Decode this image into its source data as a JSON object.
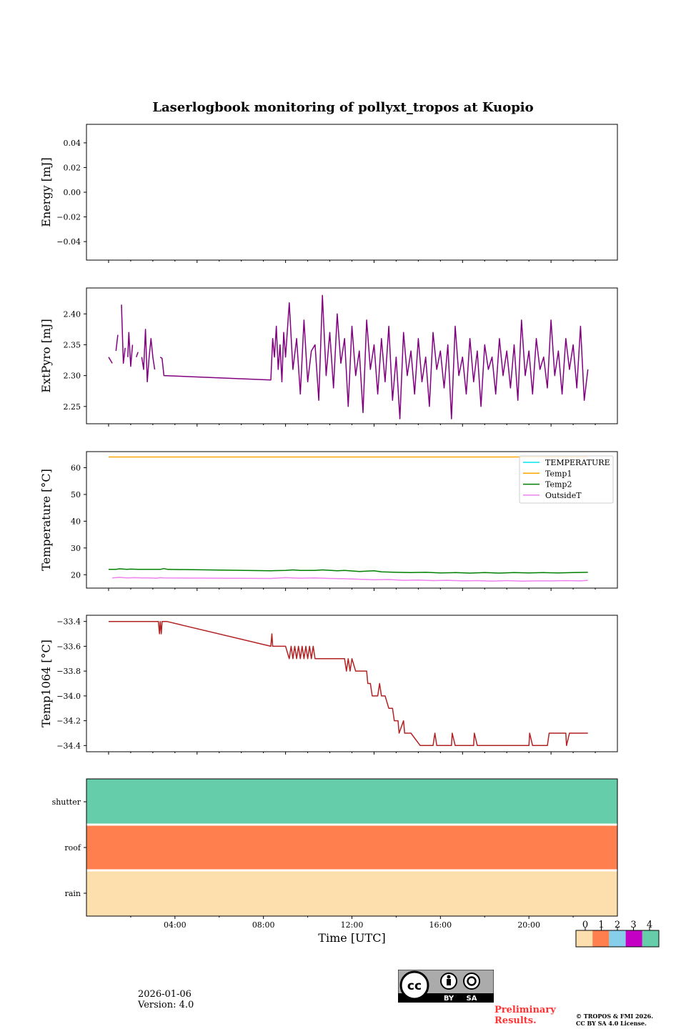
{
  "figure": {
    "title": "Laserlogbook monitoring of pollyxt_tropos at Kuopio",
    "date": "2026-01-06",
    "version": "Version: 4.0",
    "preliminary": [
      "Preliminary",
      "Results."
    ],
    "copyright": [
      "© TROPOS & FMI 2026.",
      "CC BY SA 4.0 License."
    ],
    "license_badge": {
      "left": "BY",
      "right": "SA"
    },
    "colors": {
      "energy": "#800080",
      "extpyro": "#800080",
      "temperature": "#00e5ee",
      "temp1": "#ffa500",
      "temp2": "#008000",
      "outsideT": "#ee82ee",
      "temp1064": "#b22222",
      "prelim": "#ff3333"
    }
  },
  "chart_data": [
    {
      "id": "energy",
      "type": "line",
      "ylabel": "Energy [mJ]",
      "ylim": [
        -0.055,
        0.055
      ],
      "yticks": [
        0.04,
        0.02,
        0.0,
        -0.02,
        -0.04
      ],
      "ytick_labels": [
        "0.04",
        "0.02",
        "0.00",
        "−0.02",
        "−0.04"
      ],
      "xlim": [
        0,
        1440
      ],
      "xticks": [
        60,
        300,
        540,
        780,
        1020,
        1260
      ],
      "series": []
    },
    {
      "id": "extpyro",
      "type": "line",
      "ylabel": "ExtPyro [mJ]",
      "ylim": [
        2.222,
        2.442
      ],
      "yticks": [
        2.4,
        2.35,
        2.3,
        2.25
      ],
      "ytick_labels": [
        "2.40",
        "2.35",
        "2.30",
        "2.25"
      ],
      "xlim": [
        0,
        1440
      ],
      "xticks": [
        60,
        300,
        540,
        780,
        1020,
        1260
      ],
      "series": [
        {
          "name": "ExtPyro",
          "color": "#800080",
          "x": [
            60,
            65,
            70,
            73,
            75,
            80,
            85,
            90,
            95,
            100,
            105,
            108,
            112,
            115,
            120,
            125,
            130,
            135,
            140,
            145,
            150,
            155,
            160,
            165,
            170,
            175,
            180,
            185,
            190,
            195,
            200,
            205,
            210,
            500,
            505,
            510,
            515,
            520,
            525,
            530,
            535,
            540,
            550,
            560,
            570,
            580,
            590,
            600,
            610,
            620,
            630,
            640,
            650,
            660,
            670,
            680,
            690,
            700,
            710,
            720,
            730,
            740,
            750,
            760,
            770,
            780,
            790,
            800,
            810,
            820,
            830,
            840,
            850,
            860,
            870,
            880,
            890,
            900,
            910,
            920,
            930,
            940,
            950,
            960,
            970,
            980,
            990,
            1000,
            1010,
            1020,
            1030,
            1040,
            1050,
            1060,
            1070,
            1080,
            1090,
            1100,
            1110,
            1120,
            1130,
            1140,
            1150,
            1160,
            1170,
            1180,
            1190,
            1200,
            1210,
            1220,
            1230,
            1240,
            1250,
            1260,
            1270,
            1280,
            1290,
            1300,
            1310,
            1320,
            1330,
            1340,
            1350,
            1360
          ],
          "y": [
            2.33,
            2.325,
            2.32,
            null,
            null,
            2.34,
            2.366,
            null,
            2.415,
            2.32,
            2.345,
            null,
            2.33,
            2.37,
            2.315,
            2.35,
            null,
            2.33,
            2.338,
            null,
            2.33,
            2.31,
            2.375,
            2.29,
            2.33,
            2.36,
            2.33,
            2.31,
            null,
            null,
            2.33,
            2.328,
            2.3,
            2.293,
            2.36,
            2.33,
            2.38,
            2.31,
            2.35,
            2.29,
            2.37,
            2.33,
            2.418,
            2.31,
            2.36,
            2.27,
            2.39,
            2.29,
            2.34,
            2.35,
            2.26,
            2.43,
            2.3,
            2.37,
            2.28,
            2.4,
            2.32,
            2.36,
            2.25,
            2.38,
            2.3,
            2.34,
            2.24,
            2.39,
            2.31,
            2.35,
            2.27,
            2.36,
            2.29,
            2.38,
            2.26,
            2.33,
            2.23,
            2.37,
            2.3,
            2.34,
            2.27,
            2.36,
            2.29,
            2.33,
            2.25,
            2.37,
            2.31,
            2.34,
            2.28,
            2.35,
            2.23,
            2.38,
            2.3,
            2.33,
            2.27,
            2.36,
            2.29,
            2.34,
            2.25,
            2.35,
            2.31,
            2.33,
            2.27,
            2.36,
            2.3,
            2.34,
            2.28,
            2.35,
            2.26,
            2.39,
            2.3,
            2.34,
            2.27,
            2.36,
            2.31,
            2.33,
            2.28,
            2.39,
            2.3,
            2.34,
            2.27,
            2.36,
            2.31,
            2.35,
            2.28,
            2.38,
            2.26,
            2.31
          ]
        }
      ]
    },
    {
      "id": "temperature",
      "type": "line",
      "ylabel": "Temperature [°C]",
      "ylim": [
        15,
        66
      ],
      "yticks": [
        60,
        50,
        40,
        30,
        20
      ],
      "ytick_labels": [
        "60",
        "50",
        "40",
        "30",
        "20"
      ],
      "xlim": [
        0,
        1440
      ],
      "xticks": [
        60,
        300,
        540,
        780,
        1020,
        1260
      ],
      "legend": {
        "placement": "top-right",
        "entries": [
          "TEMPERATURE",
          "Temp1",
          "Temp2",
          "OutsideT"
        ]
      },
      "series": [
        {
          "name": "TEMPERATURE",
          "color": "#00e5ee",
          "x": [],
          "y": []
        },
        {
          "name": "Temp1",
          "color": "#ffa500",
          "x": [
            60,
            1360
          ],
          "y": [
            64,
            64
          ]
        },
        {
          "name": "Temp2",
          "color": "#008000",
          "x": [
            60,
            80,
            90,
            110,
            120,
            140,
            150,
            200,
            210,
            220,
            500,
            540,
            560,
            580,
            620,
            640,
            680,
            700,
            740,
            780,
            800,
            840,
            880,
            920,
            960,
            1000,
            1040,
            1080,
            1120,
            1160,
            1200,
            1240,
            1280,
            1320,
            1360
          ],
          "y": [
            22,
            22,
            22.2,
            22,
            22.1,
            22,
            22,
            22,
            22.3,
            22,
            21.5,
            21.6,
            21.8,
            21.6,
            21.6,
            21.8,
            21.5,
            21.6,
            21.2,
            21.5,
            21.1,
            20.9,
            20.8,
            20.9,
            20.7,
            20.8,
            20.6,
            20.8,
            20.6,
            20.8,
            20.7,
            20.8,
            20.7,
            20.8,
            20.9
          ]
        },
        {
          "name": "OutsideT",
          "color": "#ee82ee",
          "x": [
            70,
            80,
            90,
            110,
            130,
            150,
            170,
            190,
            200,
            210,
            500,
            540,
            580,
            620,
            660,
            700,
            740,
            780,
            820,
            860,
            900,
            940,
            980,
            1020,
            1060,
            1100,
            1140,
            1180,
            1220,
            1260,
            1300,
            1340,
            1360
          ],
          "y": [
            18.8,
            18.9,
            19,
            18.8,
            18.9,
            18.8,
            18.8,
            18.7,
            18.9,
            18.8,
            18.6,
            18.9,
            18.7,
            18.8,
            18.6,
            18.5,
            18.3,
            18.1,
            18.2,
            17.9,
            18.0,
            17.8,
            17.9,
            17.7,
            17.8,
            17.6,
            17.8,
            17.6,
            17.7,
            17.7,
            17.8,
            17.7,
            17.9
          ]
        }
      ]
    },
    {
      "id": "temp1064",
      "type": "line",
      "ylabel": "Temp1064 [°C]",
      "ylim": [
        -34.45,
        -33.35
      ],
      "yticks": [
        -33.4,
        -33.6,
        -33.8,
        -34.0,
        -34.2,
        -34.4
      ],
      "ytick_labels": [
        "−33.4",
        "−33.6",
        "−33.8",
        "−34.0",
        "−34.2",
        "−34.4"
      ],
      "xlim": [
        0,
        1440
      ],
      "xticks": [
        60,
        300,
        540,
        780,
        1020,
        1260
      ],
      "series": [
        {
          "name": "Temp1064",
          "color": "#b22222",
          "x": [
            60,
            150,
            195,
            198,
            200,
            203,
            205,
            210,
            218,
            500,
            503,
            505,
            540,
            550,
            555,
            560,
            565,
            570,
            575,
            580,
            585,
            590,
            595,
            600,
            605,
            610,
            615,
            620,
            640,
            700,
            705,
            710,
            715,
            720,
            730,
            740,
            760,
            763,
            770,
            775,
            790,
            795,
            800,
            810,
            820,
            830,
            835,
            845,
            848,
            860,
            863,
            880,
            905,
            940,
            945,
            950,
            990,
            992,
            1000,
            1050,
            1052,
            1060,
            1200,
            1202,
            1210,
            1250,
            1255,
            1260,
            1300,
            1302,
            1310,
            1360
          ],
          "y": [
            -33.4,
            -33.4,
            -33.4,
            -33.5,
            -33.4,
            -33.5,
            -33.4,
            -33.4,
            -33.4,
            -33.6,
            -33.5,
            -33.6,
            -33.6,
            -33.7,
            -33.6,
            -33.7,
            -33.6,
            -33.7,
            -33.6,
            -33.7,
            -33.6,
            -33.7,
            -33.6,
            -33.7,
            -33.6,
            -33.7,
            -33.6,
            -33.7,
            -33.7,
            -33.7,
            -33.8,
            -33.7,
            -33.8,
            -33.7,
            -33.8,
            -33.8,
            -33.8,
            -33.9,
            -33.9,
            -34.0,
            -34.0,
            -33.9,
            -34.0,
            -34.0,
            -34.1,
            -34.1,
            -34.2,
            -34.2,
            -34.3,
            -34.2,
            -34.3,
            -34.3,
            -34.4,
            -34.4,
            -34.3,
            -34.4,
            -34.4,
            -34.3,
            -34.4,
            -34.4,
            -34.3,
            -34.4,
            -34.4,
            -34.3,
            -34.4,
            -34.4,
            -34.3,
            -34.3,
            -34.3,
            -34.4,
            -34.3,
            -34.3
          ]
        }
      ]
    },
    {
      "id": "flags",
      "type": "heatmap",
      "rows": [
        "shutter",
        "roof",
        "rain"
      ],
      "values": [
        4,
        1,
        0
      ],
      "xlabel": "Time [UTC]",
      "xlim": [
        0,
        1440
      ],
      "xticks": [
        240,
        480,
        720,
        960,
        1200
      ],
      "xtick_labels": [
        "04:00",
        "08:00",
        "12:00",
        "16:00",
        "20:00"
      ],
      "colorbar": {
        "ticks": [
          "0",
          "1",
          "2",
          "3",
          "4"
        ],
        "colors": [
          "#fddfad",
          "#ff7f4f",
          "#87ceeb",
          "#c400c4",
          "#66cdaa"
        ]
      }
    }
  ]
}
